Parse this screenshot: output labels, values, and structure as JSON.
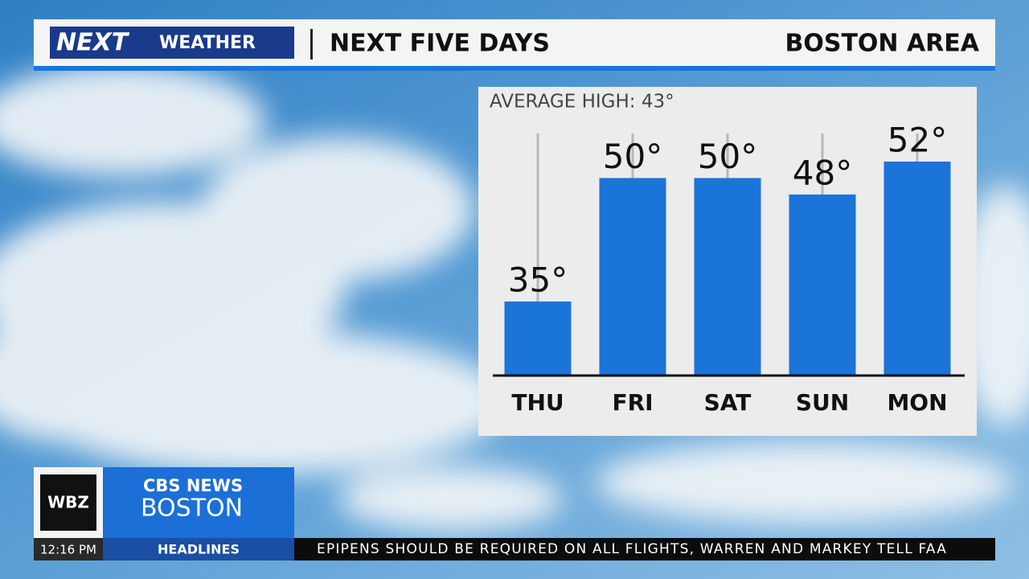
{
  "header": {
    "logo_next": "NEXT",
    "logo_weather": "WEATHER",
    "title": "NEXT FIVE DAYS",
    "location": "BOSTON AREA"
  },
  "chart_data": {
    "type": "bar",
    "annotation": "AVERAGE HIGH:  43°",
    "categories": [
      "THU",
      "FRI",
      "SAT",
      "SUN",
      "MON"
    ],
    "values": [
      35,
      50,
      50,
      48,
      52
    ],
    "value_labels": [
      "35°",
      "50°",
      "50°",
      "48°",
      "52°"
    ],
    "color": "#1b74d8",
    "ylim": [
      26,
      56
    ]
  },
  "lower_third": {
    "station": "WBZ",
    "network": "CBS NEWS",
    "city": "BOSTON",
    "time": "12:16 PM",
    "section": "HEADLINES",
    "ticker": "EPIPENS SHOULD BE REQUIRED ON ALL FLIGHTS, WARREN AND MARKEY TELL FAA"
  }
}
